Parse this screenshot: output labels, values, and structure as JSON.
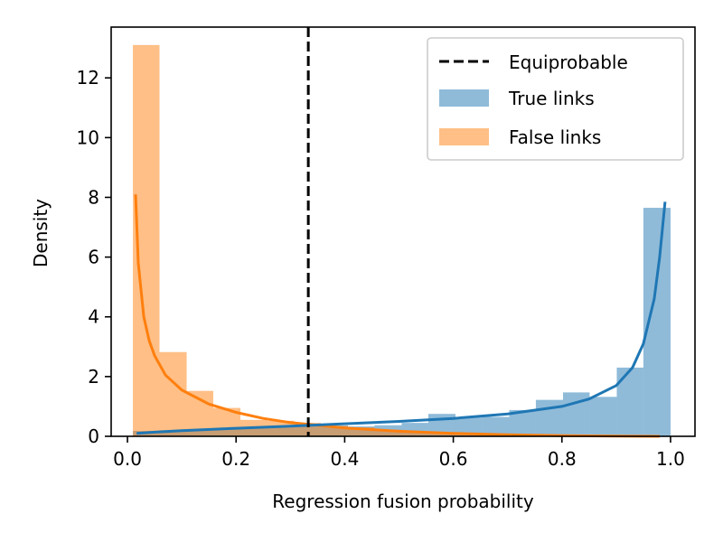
{
  "chart_data": {
    "type": "histogram",
    "xlabel": "Regression fusion probability",
    "ylabel": "Density",
    "xlim": [
      -0.03,
      1.045
    ],
    "ylim": [
      0,
      13.7
    ],
    "x_ticks": [
      0.0,
      0.2,
      0.4,
      0.6,
      0.8,
      1.0
    ],
    "x_tick_labels": [
      "0.0",
      "0.2",
      "0.4",
      "0.6",
      "0.8",
      "1.0"
    ],
    "y_ticks": [
      0,
      2,
      4,
      6,
      8,
      10,
      12
    ],
    "y_tick_labels": [
      "0",
      "2",
      "4",
      "6",
      "8",
      "10",
      "12"
    ],
    "legend_position": "top-right",
    "reference_line": {
      "name": "Equiprobable",
      "x": 0.333,
      "style": "dashed",
      "color": "#000000"
    },
    "legend": [
      "Equiprobable",
      "True links",
      "False links"
    ],
    "series": [
      {
        "name": "True links",
        "color": "#1f77b4",
        "bin_edges": [
          0.01,
          0.059,
          0.109,
          0.158,
          0.208,
          0.257,
          0.307,
          0.356,
          0.406,
          0.455,
          0.505,
          0.554,
          0.604,
          0.653,
          0.703,
          0.752,
          0.802,
          0.851,
          0.901,
          0.95,
          1.0
        ],
        "bin_heights": [
          0.18,
          0.2,
          0.22,
          0.24,
          0.27,
          0.3,
          0.33,
          0.36,
          0.33,
          0.37,
          0.45,
          0.75,
          0.63,
          0.65,
          0.88,
          1.22,
          1.47,
          1.32,
          2.3,
          7.65
        ],
        "curve_x": [
          0.017,
          0.05,
          0.1,
          0.2,
          0.3,
          0.4,
          0.5,
          0.6,
          0.7,
          0.8,
          0.85,
          0.9,
          0.93,
          0.95,
          0.97,
          0.98,
          0.99
        ],
        "curve_y": [
          0.1,
          0.14,
          0.19,
          0.27,
          0.34,
          0.42,
          0.5,
          0.6,
          0.75,
          1.0,
          1.25,
          1.7,
          2.3,
          3.1,
          4.6,
          6.0,
          7.85
        ]
      },
      {
        "name": "False links",
        "color": "#ff7f0e",
        "bin_edges": [
          0.01,
          0.059,
          0.109,
          0.158,
          0.208,
          0.257,
          0.307,
          0.356,
          0.406,
          0.455,
          0.505,
          0.554,
          0.604,
          0.653,
          0.703,
          0.752,
          0.802,
          0.851,
          0.901,
          0.95,
          1.0
        ],
        "bin_heights": [
          13.1,
          2.82,
          1.52,
          0.95,
          0.55,
          0.52,
          0.45,
          0.35,
          0.3,
          0.22,
          0.15,
          0.1,
          0.08,
          0.05,
          0.03,
          0.02,
          0.02,
          0.01,
          0.01,
          0.01
        ],
        "curve_x": [
          0.015,
          0.02,
          0.03,
          0.04,
          0.05,
          0.07,
          0.1,
          0.15,
          0.2,
          0.25,
          0.3,
          0.4,
          0.5,
          0.6,
          0.7,
          0.8,
          0.9,
          0.98
        ],
        "curve_y": [
          8.1,
          5.8,
          4.0,
          3.2,
          2.7,
          2.05,
          1.55,
          1.08,
          0.8,
          0.6,
          0.46,
          0.28,
          0.17,
          0.1,
          0.05,
          0.02,
          0.01,
          0.0
        ]
      }
    ]
  }
}
